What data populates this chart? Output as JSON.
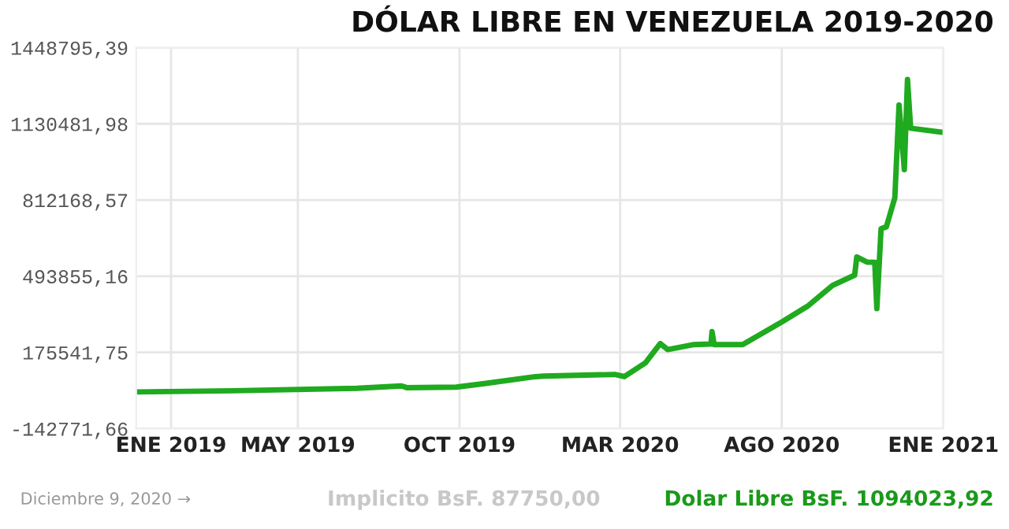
{
  "chart_data": {
    "type": "line",
    "title": "DÓLAR LIBRE EN VENEZUELA 2019-2020",
    "x": [
      "2018-11-29",
      "2019-03-01",
      "2019-06-26",
      "2019-08-07",
      "2019-08-12",
      "2019-09-28",
      "2019-10-26",
      "2019-12-12",
      "2019-12-20",
      "2020-02-25",
      "2020-03-05",
      "2020-03-25",
      "2020-04-08",
      "2020-04-15",
      "2020-05-10",
      "2020-05-26",
      "2020-05-27",
      "2020-05-29",
      "2020-06-25",
      "2020-08-02",
      "2020-08-26",
      "2020-09-18",
      "2020-10-09",
      "2020-10-11",
      "2020-10-21",
      "2020-10-28",
      "2020-10-30",
      "2020-11-03",
      "2020-11-08",
      "2020-11-16",
      "2020-11-20",
      "2020-11-25",
      "2020-11-28",
      "2020-12-01",
      "2021-01-01"
    ],
    "series": [
      {
        "color": "#1faa1f",
        "values": [
          10000,
          15000,
          25000,
          35000,
          28000,
          30000,
          46000,
          74000,
          76000,
          83000,
          74000,
          132000,
          212000,
          187000,
          208000,
          210000,
          262000,
          208000,
          208000,
          305000,
          370000,
          455000,
          498000,
          574000,
          552000,
          552000,
          358000,
          692000,
          700000,
          821000,
          1209000,
          939000,
          1316000,
          1112000,
          1094000
        ]
      }
    ],
    "xlim": [
      "2018-11-29",
      "2021-01-01"
    ],
    "xticks": [
      {
        "value": "2019-01-01",
        "label": "ENE 2019"
      },
      {
        "value": "2019-05-01",
        "label": "MAY 2019"
      },
      {
        "value": "2019-10-01",
        "label": "OCT 2019"
      },
      {
        "value": "2020-03-01",
        "label": "MAR 2020"
      },
      {
        "value": "2020-08-01",
        "label": "AGO 2020"
      },
      {
        "value": "2021-01-01",
        "label": "ENE 2021"
      }
    ],
    "ylim": [
      -142771.66,
      1448795.39
    ],
    "yticks": [
      {
        "value": -142771.66,
        "label": "-142771,66"
      },
      {
        "value": 175541.75,
        "label": "175541,75"
      },
      {
        "value": 493855.16,
        "label": "493855,16"
      },
      {
        "value": 812168.57,
        "label": "812168,57"
      },
      {
        "value": 1130481.98,
        "label": "1130481,98"
      },
      {
        "value": 1448795.39,
        "label": "1448795,39"
      }
    ],
    "grid": true,
    "line_style": "solid",
    "marker": "none",
    "annotations": [
      "Diciembre 9, 2020 →",
      "Implicito BsF. 87750,00",
      "Dolar Libre BsF. 1094023,92"
    ]
  }
}
